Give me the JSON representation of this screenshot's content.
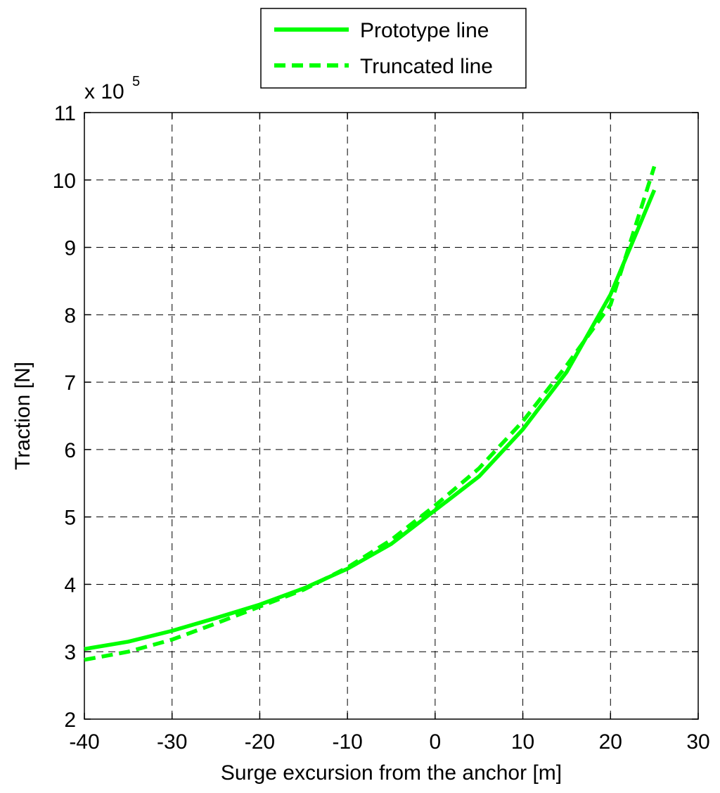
{
  "chart_data": {
    "type": "line",
    "xlabel": "Surge excursion from the anchor [m]",
    "ylabel": "Traction [N]",
    "y_multiplier_base": "x 10",
    "y_multiplier_exponent": "5",
    "xlim": [
      -40,
      30
    ],
    "ylim": [
      2,
      11
    ],
    "xticks": [
      -40,
      -30,
      -20,
      -10,
      0,
      10,
      20,
      30
    ],
    "yticks": [
      2,
      3,
      4,
      5,
      6,
      7,
      8,
      9,
      10,
      11
    ],
    "grid": true,
    "legend_position": "top-center",
    "series": [
      {
        "name": "Prototype line",
        "style": "solid",
        "color": "#00ff00",
        "x": [
          -40,
          -35,
          -30,
          -25,
          -20,
          -15,
          -10,
          -5,
          0,
          5,
          10,
          15,
          20,
          25
        ],
        "y": [
          3.04,
          3.15,
          3.31,
          3.5,
          3.7,
          3.94,
          4.23,
          4.6,
          5.1,
          5.6,
          6.3,
          7.15,
          8.3,
          9.85
        ]
      },
      {
        "name": "Truncated line",
        "style": "dashed",
        "color": "#00ff00",
        "x": [
          -40,
          -35,
          -30,
          -25,
          -20,
          -15,
          -10,
          -5,
          0,
          5,
          10,
          15,
          20,
          25
        ],
        "y": [
          2.88,
          3.0,
          3.18,
          3.42,
          3.67,
          3.92,
          4.25,
          4.66,
          5.17,
          5.72,
          6.42,
          7.25,
          8.15,
          10.2
        ]
      }
    ]
  }
}
